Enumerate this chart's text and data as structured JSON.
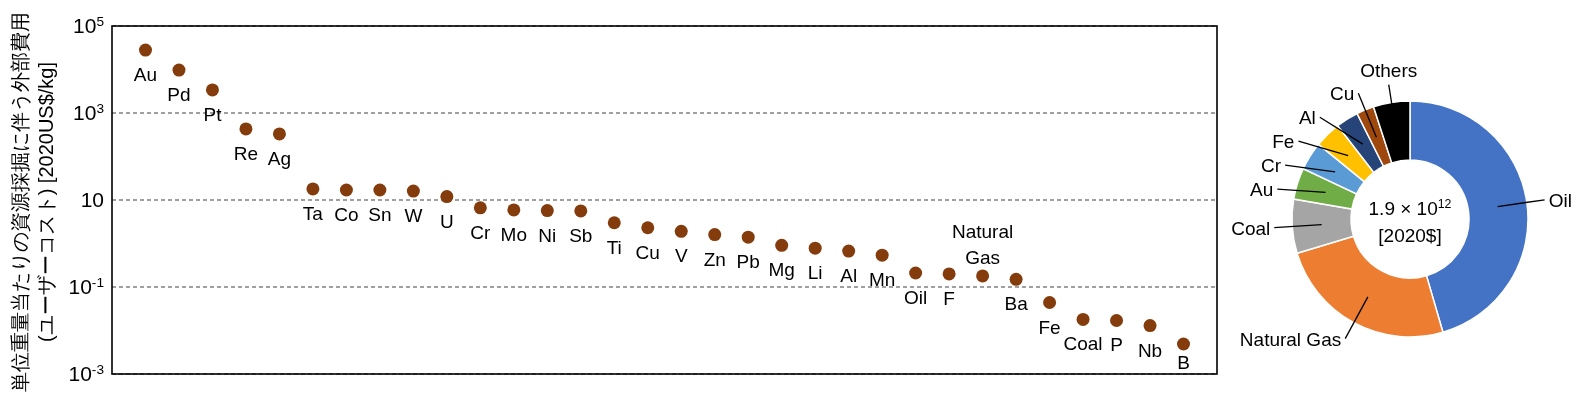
{
  "chart_data": [
    {
      "type": "scatter",
      "ylabel": "単位重量当たりの資源採掘に伴う外部費用\n(ユーザーコスト) [2020US$/kg]",
      "categories": [
        "Au",
        "Pd",
        "Pt",
        "Re",
        "Ag",
        "Ta",
        "Co",
        "Sn",
        "W",
        "U",
        "Cr",
        "Mo",
        "Ni",
        "Sb",
        "Ti",
        "Cu",
        "V",
        "Zn",
        "Pb",
        "Mg",
        "Li",
        "Al",
        "Mn",
        "Oil",
        "F",
        "Natural Gas",
        "Ba",
        "Fe",
        "Coal",
        "P",
        "Nb",
        "B"
      ],
      "values": [
        28000,
        9700,
        3400,
        430,
        330,
        18,
        17,
        17,
        16,
        12,
        6.6,
        5.9,
        5.7,
        5.6,
        3.0,
        2.3,
        1.9,
        1.6,
        1.4,
        0.91,
        0.78,
        0.67,
        0.54,
        0.21,
        0.2,
        0.18,
        0.15,
        0.044,
        0.018,
        0.017,
        0.013,
        0.0049
      ],
      "color": "#843c0c",
      "marker": "circle",
      "log": true,
      "ylim": [
        0.001,
        100000
      ],
      "yticks": [
        {
          "value": 100000,
          "label": "10$^{5}$"
        },
        {
          "value": 1000,
          "label": "10$^{3}$"
        },
        10,
        {
          "value": 0.1,
          "label": "10$^{-1}$"
        },
        {
          "value": 0.001,
          "label": "10$^{-3}$"
        }
      ],
      "grid": "y"
    },
    {
      "type": "donut",
      "categories": [
        "Oil",
        "Natural Gas",
        "Coal",
        "Au",
        "Cr",
        "Fe",
        "Al",
        "Cu",
        "Others"
      ],
      "values": [
        45.5,
        24.8,
        7.4,
        4.3,
        3.9,
        3.6,
        3.1,
        2.4,
        5.0
      ],
      "colors": [
        "#4472c4",
        "#ed7d31",
        "#a5a5a5",
        "#70ad47",
        "#5b9bd5",
        "#ffc000",
        "#264478",
        "#9e480e",
        "#000000"
      ],
      "annotations": [
        "1.9 × 10$^{12}$",
        "[2020$]"
      ]
    }
  ]
}
